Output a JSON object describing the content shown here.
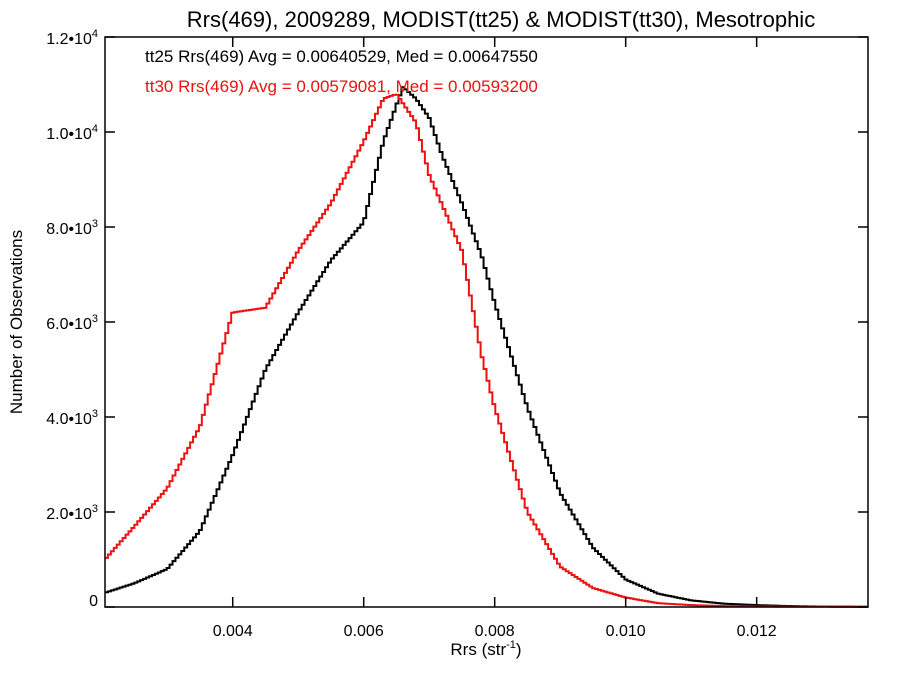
{
  "chart_data": {
    "type": "line",
    "title": "Rrs(469), 2009289, MODIST(tt25) & MODIST(tt30), Mesotrophic",
    "xlabel": "Rrs (str",
    "xlabel_exponent": "-1",
    "xlabel_close": ")",
    "ylabel": "Number of Observations",
    "xlim": [
      0.00205,
      0.0137
    ],
    "ylim": [
      0,
      12000
    ],
    "x_ticks": [
      {
        "value": 0.004,
        "label": "0.004"
      },
      {
        "value": 0.006,
        "label": "0.006"
      },
      {
        "value": 0.008,
        "label": "0.008"
      },
      {
        "value": 0.01,
        "label": "0.010"
      },
      {
        "value": 0.012,
        "label": "0.012"
      }
    ],
    "y_ticks": [
      {
        "value": 0,
        "mantissa": "0",
        "exponent": ""
      },
      {
        "value": 2000,
        "mantissa": "2.0•10",
        "exponent": "3"
      },
      {
        "value": 4000,
        "mantissa": "4.0•10",
        "exponent": "3"
      },
      {
        "value": 6000,
        "mantissa": "6.0•10",
        "exponent": "3"
      },
      {
        "value": 8000,
        "mantissa": "8.0•10",
        "exponent": "3"
      },
      {
        "value": 10000,
        "mantissa": "1.0•10",
        "exponent": "4"
      },
      {
        "value": 12000,
        "mantissa": "1.2•10",
        "exponent": "4"
      }
    ],
    "annotations": [
      {
        "text": "tt25 Rrs(469) Avg = 0.00640529, Med = 0.00647550",
        "color": "#000000"
      },
      {
        "text": "tt30 Rrs(469) Avg = 0.00579081, Med = 0.00593200",
        "color": "#ee1111"
      }
    ],
    "series": [
      {
        "color": "#000000",
        "points": [
          [
            0.00205,
            300
          ],
          [
            0.0025,
            500
          ],
          [
            0.003,
            800
          ],
          [
            0.0035,
            1600
          ],
          [
            0.004,
            3200
          ],
          [
            0.0045,
            5000
          ],
          [
            0.005,
            6200
          ],
          [
            0.0055,
            7300
          ],
          [
            0.006,
            8100
          ],
          [
            0.0063,
            9800
          ],
          [
            0.0066,
            10950
          ],
          [
            0.0068,
            10700
          ],
          [
            0.007,
            10300
          ],
          [
            0.0072,
            9500
          ],
          [
            0.0075,
            8500
          ],
          [
            0.0078,
            7400
          ],
          [
            0.008,
            6400
          ],
          [
            0.0085,
            4200
          ],
          [
            0.009,
            2400
          ],
          [
            0.0095,
            1250
          ],
          [
            0.01,
            580
          ],
          [
            0.0105,
            280
          ],
          [
            0.011,
            140
          ],
          [
            0.0115,
            70
          ],
          [
            0.012,
            40
          ],
          [
            0.0125,
            20
          ],
          [
            0.013,
            10
          ],
          [
            0.0137,
            5
          ]
        ]
      },
      {
        "color": "#ee1111",
        "points": [
          [
            0.00205,
            1000
          ],
          [
            0.0025,
            1700
          ],
          [
            0.003,
            2500
          ],
          [
            0.0035,
            3800
          ],
          [
            0.004,
            6200
          ],
          [
            0.0045,
            6300
          ],
          [
            0.005,
            7500
          ],
          [
            0.0055,
            8500
          ],
          [
            0.006,
            9800
          ],
          [
            0.0063,
            10700
          ],
          [
            0.0065,
            10800
          ],
          [
            0.0068,
            10200
          ],
          [
            0.007,
            9100
          ],
          [
            0.0075,
            7500
          ],
          [
            0.0078,
            5300
          ],
          [
            0.008,
            4200
          ],
          [
            0.0085,
            2000
          ],
          [
            0.009,
            850
          ],
          [
            0.0095,
            400
          ],
          [
            0.01,
            200
          ],
          [
            0.0105,
            80
          ],
          [
            0.011,
            40
          ],
          [
            0.0115,
            20
          ],
          [
            0.012,
            10
          ],
          [
            0.0137,
            5
          ]
        ]
      }
    ]
  }
}
